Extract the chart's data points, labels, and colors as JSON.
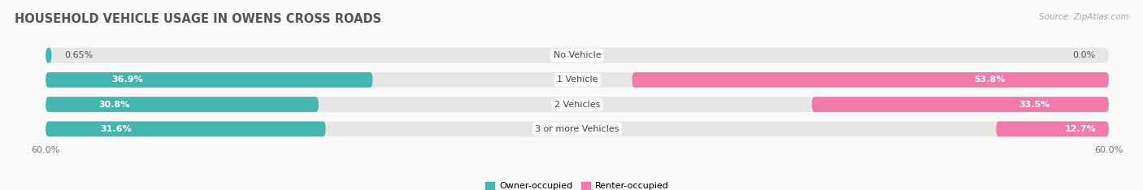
{
  "title": "HOUSEHOLD VEHICLE USAGE IN OWENS CROSS ROADS",
  "source": "Source: ZipAtlas.com",
  "categories": [
    "No Vehicle",
    "1 Vehicle",
    "2 Vehicles",
    "3 or more Vehicles"
  ],
  "owner_values": [
    0.65,
    36.9,
    30.8,
    31.6
  ],
  "renter_values": [
    0.0,
    53.8,
    33.5,
    12.7
  ],
  "owner_color": "#45b5b0",
  "renter_color": "#f07aa8",
  "owner_label_color": "#555555",
  "renter_label_color": "#555555",
  "bg_bar_color": "#e8e8e8",
  "axis_limit": 60.0,
  "legend_owner": "Owner-occupied",
  "legend_renter": "Renter-occupied",
  "title_fontsize": 10.5,
  "source_fontsize": 7.5,
  "value_fontsize": 8.0,
  "category_fontsize": 8.0,
  "axis_label_fontsize": 8.0,
  "bar_height": 0.62,
  "background_color": "#f9f9f9",
  "bar_bg_color": "#e6e6e6"
}
